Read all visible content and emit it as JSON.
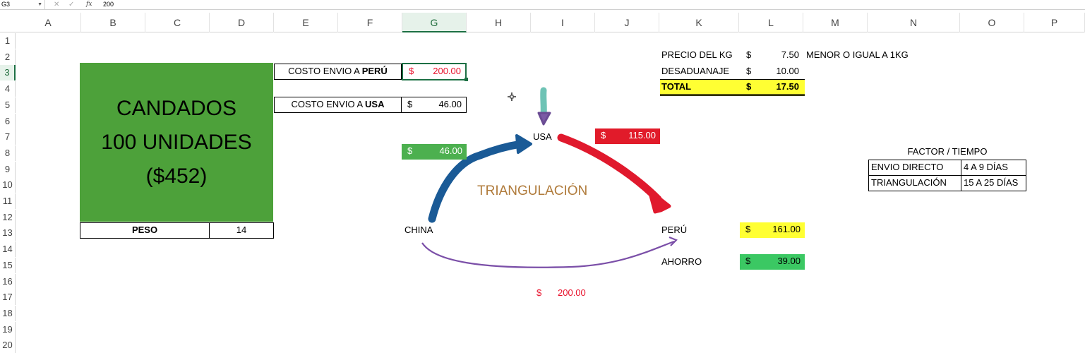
{
  "formula_bar": {
    "name_box": "G3",
    "cancel_icon": "✕",
    "confirm_icon": "✓",
    "fx_label": "fx",
    "value": "200"
  },
  "columns": [
    "A",
    "B",
    "C",
    "D",
    "E",
    "F",
    "G",
    "H",
    "I",
    "J",
    "K",
    "L",
    "M",
    "N",
    "O",
    "P"
  ],
  "selected_column": "G",
  "rows": [
    "1",
    "2",
    "3",
    "4",
    "5",
    "6",
    "7",
    "8",
    "9",
    "10",
    "11",
    "12",
    "13",
    "14",
    "15",
    "16",
    "17",
    "18",
    "19",
    "20"
  ],
  "selected_row": "3",
  "product": {
    "line1": "CANDADOS",
    "line2": "100 UNIDADES",
    "line3": "($452)",
    "color": "#4da13a"
  },
  "peso": {
    "label": "PESO",
    "value": "14"
  },
  "costo_peru": {
    "label_prefix": "COSTO ENVIO A ",
    "label_bold": "PERÚ",
    "currency": "$",
    "amount": "200.00"
  },
  "costo_usa": {
    "label_prefix": "COSTO ENVIO A ",
    "label_bold": "USA",
    "currency": "$",
    "amount": "46.00"
  },
  "pricing": {
    "precio_label": "PRECIO DEL KG",
    "precio_currency": "$",
    "precio_value": "7.50",
    "precio_note": "MENOR O IGUAL A 1KG",
    "desaduanaje_label": "DESADUANAJE",
    "desaduanaje_currency": "$",
    "desaduanaje_value": "10.00",
    "total_label": "TOTAL",
    "total_currency": "$",
    "total_value": "17.50"
  },
  "diagram": {
    "china_label": "CHINA",
    "usa_label": "USA",
    "peru_label": "PERÚ",
    "center_label": "TRIANGULACIÓN",
    "china_usa_currency": "$",
    "china_usa_amount": "46.00",
    "usa_peru_currency": "$",
    "usa_peru_amount": "115.00",
    "direct_currency": "$",
    "direct_amount": "200.00",
    "arrow_colors": {
      "china_usa": "#1a5a96",
      "usa_peru": "#e0192d",
      "direct": "#7b4fa8",
      "incoming": "#6ec3b5"
    }
  },
  "results": {
    "peru_currency": "$",
    "peru_total": "161.00",
    "ahorro_label": "AHORRO",
    "ahorro_currency": "$",
    "ahorro_value": "39.00"
  },
  "factor_table": {
    "title": "FACTOR / TIEMPO",
    "rows": [
      {
        "label": "ENVIO DIRECTO",
        "value": "4 A 9 DÍAS"
      },
      {
        "label": "TRIANGULACIÓN",
        "value": "15 A 25 DÍAS"
      }
    ]
  }
}
